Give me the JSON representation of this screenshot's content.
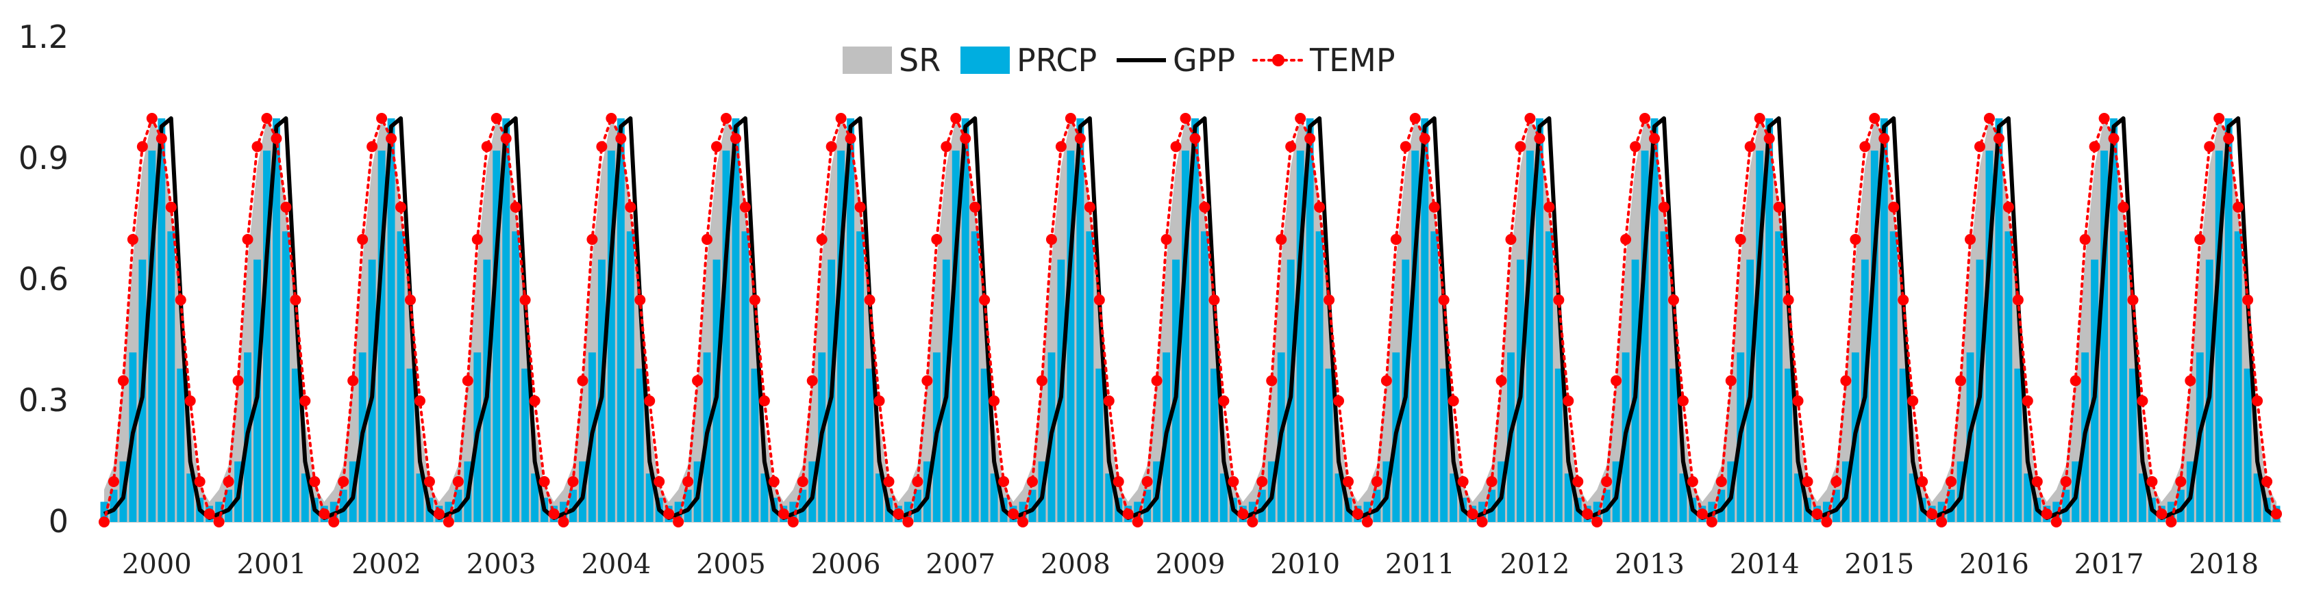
{
  "chart_data": {
    "type": "line",
    "title": "",
    "xlabel": "",
    "ylabel": "",
    "ylim": [
      0,
      1.2
    ],
    "yticks": [
      "0",
      "0.3",
      "0.6",
      "0.9",
      "1.2"
    ],
    "ytick_values": [
      0,
      0.3,
      0.6,
      0.9,
      1.2
    ],
    "grid": false,
    "legend_position": "top-center",
    "categories": [
      "2000",
      "2001",
      "2002",
      "2003",
      "2004",
      "2005",
      "2006",
      "2007",
      "2008",
      "2009",
      "2010",
      "2011",
      "2012",
      "2013",
      "2014",
      "2015",
      "2016",
      "2017",
      "2018"
    ],
    "x_description_note": "monthly series, 12 points per year, normalized 0-1 values",
    "months_per_year": 12,
    "series": [
      {
        "name": "SR",
        "render": "area",
        "color": "#c0c0c0",
        "monthly_pattern": [
          0.08,
          0.14,
          0.35,
          0.65,
          0.88,
          1.0,
          0.95,
          0.78,
          0.52,
          0.25,
          0.09,
          0.05
        ]
      },
      {
        "name": "PRCP",
        "render": "bar",
        "color": "#00aee0",
        "monthly_pattern": [
          0.05,
          0.08,
          0.15,
          0.42,
          0.65,
          0.92,
          1.0,
          0.72,
          0.38,
          0.12,
          0.06,
          0.04
        ]
      },
      {
        "name": "GPP",
        "render": "line",
        "color": "#000000",
        "monthly_pattern": [
          0.02,
          0.03,
          0.06,
          0.22,
          0.31,
          0.66,
          0.98,
          1.0,
          0.55,
          0.15,
          0.03,
          0.01
        ]
      },
      {
        "name": "TEMP",
        "render": "dotted-line-markers",
        "color": "#ff0000",
        "monthly_pattern": [
          0.0,
          0.1,
          0.35,
          0.7,
          0.93,
          1.0,
          0.95,
          0.78,
          0.55,
          0.3,
          0.1,
          0.02
        ]
      }
    ]
  }
}
